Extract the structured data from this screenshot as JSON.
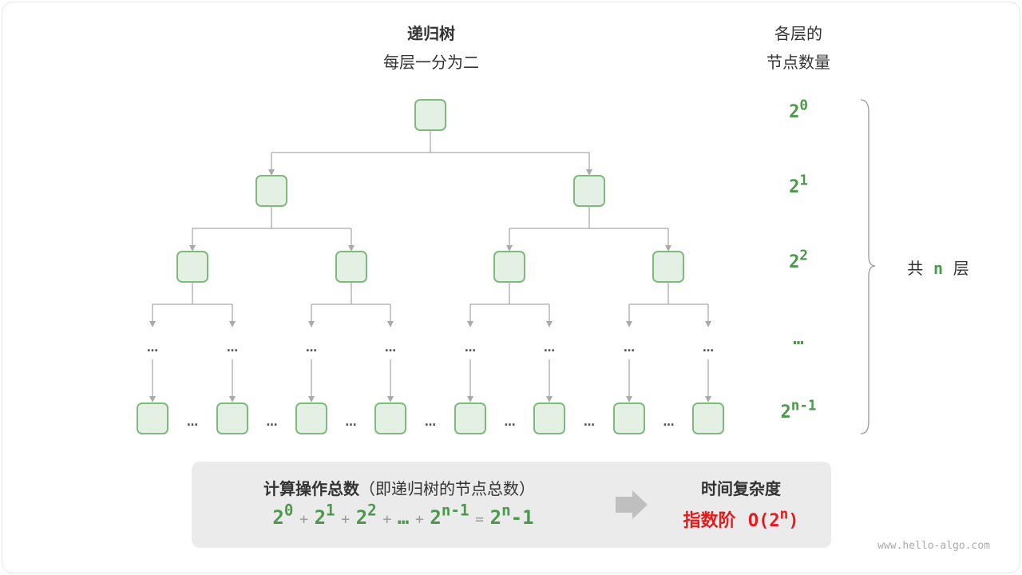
{
  "title": "递归树",
  "subtitle": "每层一分为二",
  "right_header": [
    "各层的",
    "节点数量"
  ],
  "levels": [
    {
      "base": "2",
      "exp": "0"
    },
    {
      "base": "2",
      "exp": "1"
    },
    {
      "base": "2",
      "exp": "2"
    },
    {
      "base": "…",
      "exp": ""
    },
    {
      "base": "2",
      "exp": "n-1"
    }
  ],
  "brace_label": {
    "pre": "共",
    "var": "n",
    "post": "层"
  },
  "summary": {
    "title": "计算操作总数",
    "title_note": "（即递归树的节点总数）",
    "terms": [
      {
        "base": "2",
        "exp": "0"
      },
      {
        "base": "2",
        "exp": "1"
      },
      {
        "base": "2",
        "exp": "2"
      },
      {
        "base": "…",
        "exp": ""
      },
      {
        "base": "2",
        "exp": "n-1"
      }
    ],
    "plus": "+",
    "equals": "=",
    "result": {
      "base": "2",
      "exp": "n",
      "tail": "-1"
    },
    "complexity_title": "时间复杂度",
    "complexity_name": "指数阶",
    "complexity_big_o": {
      "pre": "O(2",
      "exp": "n",
      "post": ")"
    }
  },
  "ellipsis": "…",
  "watermark": "www.hello-algo.com",
  "colors": {
    "node_fill": "#e3f0e3",
    "node_stroke": "#7dbb7d",
    "edge": "#aaaaaa",
    "number": "#4b9a4b",
    "complexity": "#e51b1b",
    "panel": "#ebebeb"
  }
}
